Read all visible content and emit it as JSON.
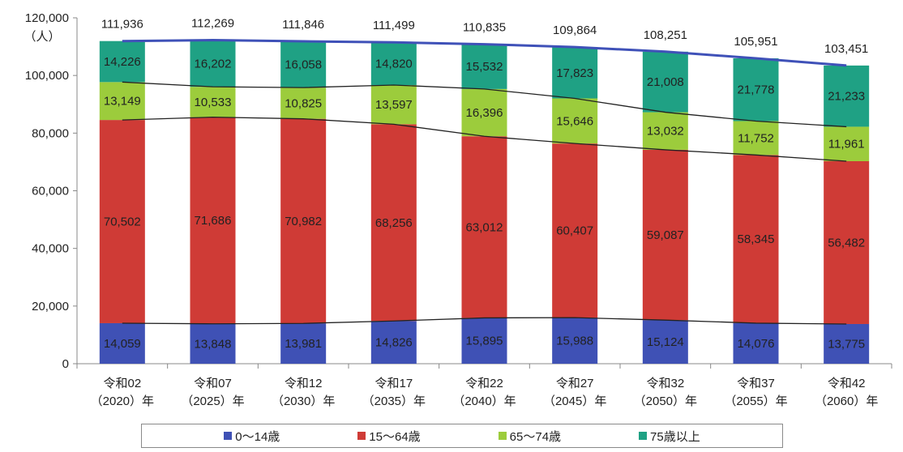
{
  "colors": {
    "age_0_14": "#3f51b5",
    "age_15_64": "#cf3b36",
    "age_65_74": "#9ccc3c",
    "age_75_plus": "#1fa184",
    "total_line": "#3f51b8",
    "connector": "#222222",
    "axis": "#888888"
  },
  "chart_data": {
    "type": "bar",
    "stacked": true,
    "y_unit": "（人）",
    "ylim": [
      0,
      120000
    ],
    "y_ticks": [
      "0",
      "20,000",
      "40,000",
      "60,000",
      "80,000",
      "100,000",
      "120,000"
    ],
    "grid": false,
    "legend_position": "bottom",
    "categories": [
      {
        "line1": "令和02",
        "line2": "（2020）年"
      },
      {
        "line1": "令和07",
        "line2": "（2025）年"
      },
      {
        "line1": "令和12",
        "line2": "（2030）年"
      },
      {
        "line1": "令和17",
        "line2": "（2035）年"
      },
      {
        "line1": "令和22",
        "line2": "（2040）年"
      },
      {
        "line1": "令和27",
        "line2": "（2045）年"
      },
      {
        "line1": "令和32",
        "line2": "（2050）年"
      },
      {
        "line1": "令和37",
        "line2": "（2055）年"
      },
      {
        "line1": "令和42",
        "line2": "（2060）年"
      }
    ],
    "series": [
      {
        "name": "0～14歳",
        "color_key": "age_0_14",
        "values": [
          14059,
          13848,
          13981,
          14826,
          15895,
          15988,
          15124,
          14076,
          13775
        ],
        "labels": [
          "14,059",
          "13,848",
          "13,981",
          "14,826",
          "15,895",
          "15,988",
          "15,124",
          "14,076",
          "13,775"
        ]
      },
      {
        "name": "15～64歳",
        "color_key": "age_15_64",
        "values": [
          70502,
          71686,
          70982,
          68256,
          63012,
          60407,
          59087,
          58345,
          56482
        ],
        "labels": [
          "70,502",
          "71,686",
          "70,982",
          "68,256",
          "63,012",
          "60,407",
          "59,087",
          "58,345",
          "56,482"
        ]
      },
      {
        "name": "65～74歳",
        "color_key": "age_65_74",
        "values": [
          13149,
          10533,
          10825,
          13597,
          16396,
          15646,
          13032,
          11752,
          11961
        ],
        "labels": [
          "13,149",
          "10,533",
          "10,825",
          "13,597",
          "16,396",
          "15,646",
          "13,032",
          "11,752",
          "11,961"
        ]
      },
      {
        "name": "75歳以上",
        "color_key": "age_75_plus",
        "values": [
          14226,
          16202,
          16058,
          14820,
          15532,
          17823,
          21008,
          21778,
          21233
        ],
        "labels": [
          "14,226",
          "16,202",
          "16,058",
          "14,820",
          "15,532",
          "17,823",
          "21,008",
          "21,778",
          "21,233"
        ]
      }
    ],
    "totals": [
      111936,
      112269,
      111846,
      111499,
      110835,
      109864,
      108251,
      105951,
      103451
    ],
    "total_labels": [
      "111,936",
      "112,269",
      "111,846",
      "111,499",
      "110,835",
      "109,864",
      "108,251",
      "105,951",
      "103,451"
    ]
  },
  "legend": {
    "items": [
      {
        "label": "0～14歳",
        "color_key": "age_0_14"
      },
      {
        "label": "15～64歳",
        "color_key": "age_15_64"
      },
      {
        "label": "65～74歳",
        "color_key": "age_65_74"
      },
      {
        "label": "75歳以上",
        "color_key": "age_75_plus"
      }
    ]
  }
}
